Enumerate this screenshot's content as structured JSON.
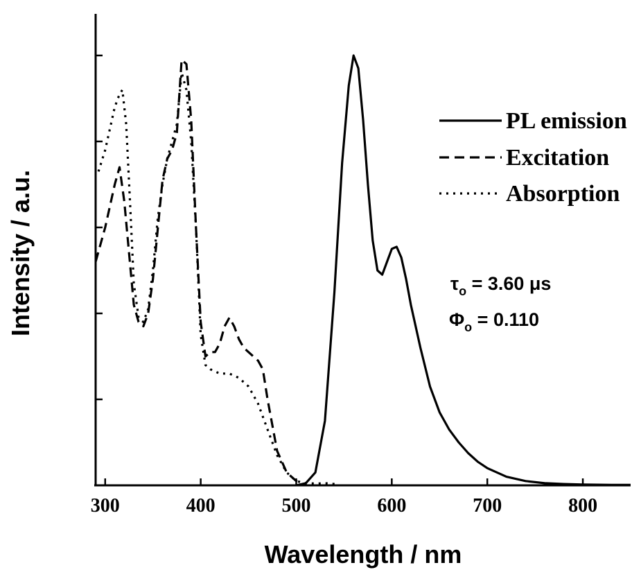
{
  "chart_data": {
    "type": "line",
    "xlabel": "Wavelength / nm",
    "ylabel": "Intensity / a.u.",
    "xlim": [
      290,
      850
    ],
    "ylim": [
      0,
      1.0
    ],
    "x_ticks": [
      300,
      400,
      500,
      600,
      700,
      800
    ],
    "y_ticks_count": 5,
    "y_tick_labels_shown": false,
    "grid": false,
    "legend_position": "top-right",
    "series": [
      {
        "name": "PL emission",
        "style": "solid",
        "x": [
          500,
          510,
          520,
          530,
          540,
          548,
          555,
          560,
          565,
          570,
          575,
          580,
          585,
          590,
          595,
          600,
          605,
          610,
          615,
          620,
          630,
          640,
          650,
          660,
          670,
          680,
          690,
          700,
          720,
          740,
          760,
          780,
          800,
          830,
          850
        ],
        "y": [
          0.0,
          0.005,
          0.03,
          0.15,
          0.45,
          0.75,
          0.93,
          1.0,
          0.97,
          0.85,
          0.7,
          0.57,
          0.5,
          0.49,
          0.52,
          0.55,
          0.555,
          0.53,
          0.48,
          0.42,
          0.32,
          0.23,
          0.17,
          0.13,
          0.1,
          0.075,
          0.055,
          0.04,
          0.02,
          0.01,
          0.005,
          0.003,
          0.002,
          0.001,
          0.001
        ]
      },
      {
        "name": "Excitation",
        "style": "dashed",
        "x": [
          290,
          300,
          310,
          315,
          320,
          330,
          335,
          340,
          345,
          350,
          360,
          365,
          370,
          375,
          380,
          385,
          390,
          395,
          400,
          405,
          410,
          415,
          420,
          425,
          430,
          435,
          440,
          445,
          450,
          455,
          460,
          465,
          470,
          480,
          490,
          500,
          510
        ],
        "y": [
          0.52,
          0.6,
          0.7,
          0.74,
          0.66,
          0.42,
          0.38,
          0.37,
          0.4,
          0.48,
          0.71,
          0.76,
          0.78,
          0.82,
          0.99,
          0.98,
          0.85,
          0.6,
          0.38,
          0.3,
          0.31,
          0.31,
          0.33,
          0.37,
          0.39,
          0.37,
          0.34,
          0.32,
          0.31,
          0.3,
          0.29,
          0.27,
          0.2,
          0.08,
          0.03,
          0.01,
          0.0
        ]
      },
      {
        "name": "Absorption",
        "style": "dotted",
        "x": [
          293,
          300,
          305,
          310,
          315,
          318,
          322,
          326,
          330,
          335,
          340,
          345,
          350,
          355,
          360,
          365,
          370,
          375,
          380,
          385,
          390,
          395,
          400,
          405,
          410,
          420,
          430,
          440,
          450,
          460,
          470,
          480,
          490,
          500,
          510,
          520,
          530,
          540,
          545
        ],
        "y": [
          0.73,
          0.78,
          0.83,
          0.88,
          0.91,
          0.92,
          0.84,
          0.66,
          0.47,
          0.39,
          0.38,
          0.41,
          0.5,
          0.62,
          0.7,
          0.76,
          0.8,
          0.84,
          0.96,
          0.92,
          0.8,
          0.6,
          0.35,
          0.28,
          0.27,
          0.26,
          0.26,
          0.25,
          0.23,
          0.19,
          0.13,
          0.07,
          0.03,
          0.01,
          0.005,
          0.004,
          0.005,
          0.003,
          0.002
        ]
      }
    ],
    "annotations": [
      {
        "symbol": "τ",
        "sub": "o",
        "text": " = 3.60 μs"
      },
      {
        "symbol": "Φ",
        "sub": "o",
        "text": " = 0.110"
      }
    ]
  }
}
